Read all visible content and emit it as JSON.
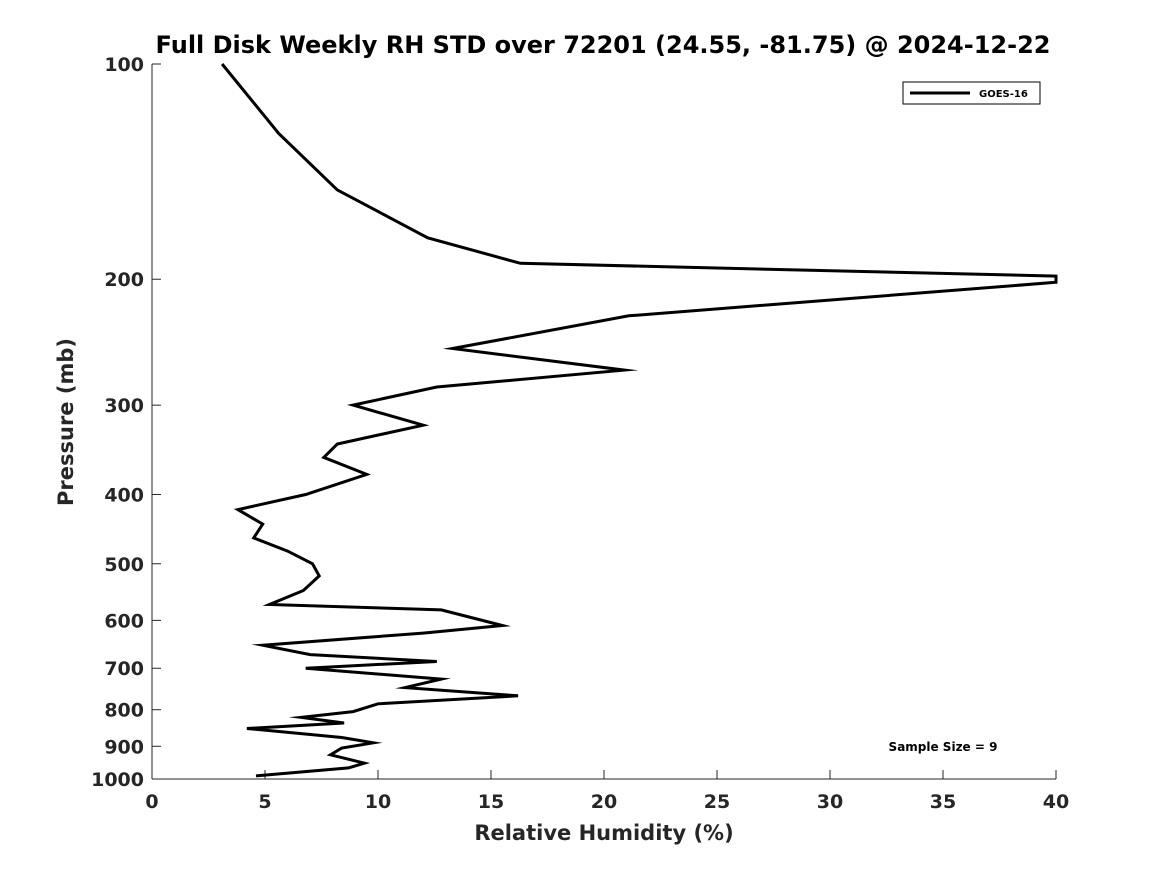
{
  "chart_data": {
    "type": "line",
    "title": "Full Disk Weekly RH STD over 72201 (24.55, -81.75) @ 2024-12-22",
    "xlabel": "Relative Humidity (%)",
    "ylabel": "Pressure (mb)",
    "xlim": [
      0,
      40
    ],
    "ylim": [
      100,
      1000
    ],
    "yscale": "log",
    "yreversed": true,
    "x_ticks": [
      "0",
      "5",
      "10",
      "15",
      "20",
      "25",
      "30",
      "35",
      "40"
    ],
    "y_ticks": [
      "100",
      "200",
      "300",
      "400",
      "500",
      "600",
      "700",
      "800",
      "900",
      "1000"
    ],
    "legend_position": "top-right",
    "annotation": "Sample Size = 9",
    "series": [
      {
        "name": "GOES-16",
        "color": "#000000",
        "points": [
          [
            3.1,
            100
          ],
          [
            5.6,
            125
          ],
          [
            8.2,
            150
          ],
          [
            12.2,
            175
          ],
          [
            16.3,
            190
          ],
          [
            40.0,
            198
          ],
          [
            40.0,
            202
          ],
          [
            21.1,
            225
          ],
          [
            13.3,
            250
          ],
          [
            20.9,
            268
          ],
          [
            12.6,
            283
          ],
          [
            8.9,
            300
          ],
          [
            12.0,
            320
          ],
          [
            8.2,
            340
          ],
          [
            7.6,
            355
          ],
          [
            9.5,
            375
          ],
          [
            6.8,
            400
          ],
          [
            3.8,
            420
          ],
          [
            4.9,
            440
          ],
          [
            4.5,
            460
          ],
          [
            6.0,
            480
          ],
          [
            7.1,
            500
          ],
          [
            7.4,
            520
          ],
          [
            6.7,
            545
          ],
          [
            5.2,
            570
          ],
          [
            12.8,
            580
          ],
          [
            15.5,
            610
          ],
          [
            12.0,
            625
          ],
          [
            4.9,
            650
          ],
          [
            7.0,
            670
          ],
          [
            12.6,
            685
          ],
          [
            6.8,
            700
          ],
          [
            12.8,
            725
          ],
          [
            11.2,
            745
          ],
          [
            16.2,
            765
          ],
          [
            10.0,
            785
          ],
          [
            8.9,
            805
          ],
          [
            6.6,
            820
          ],
          [
            8.5,
            835
          ],
          [
            4.2,
            850
          ],
          [
            8.4,
            875
          ],
          [
            9.8,
            890
          ],
          [
            8.4,
            905
          ],
          [
            7.9,
            925
          ],
          [
            9.4,
            950
          ],
          [
            8.7,
            965
          ],
          [
            4.6,
            990
          ]
        ]
      }
    ]
  }
}
